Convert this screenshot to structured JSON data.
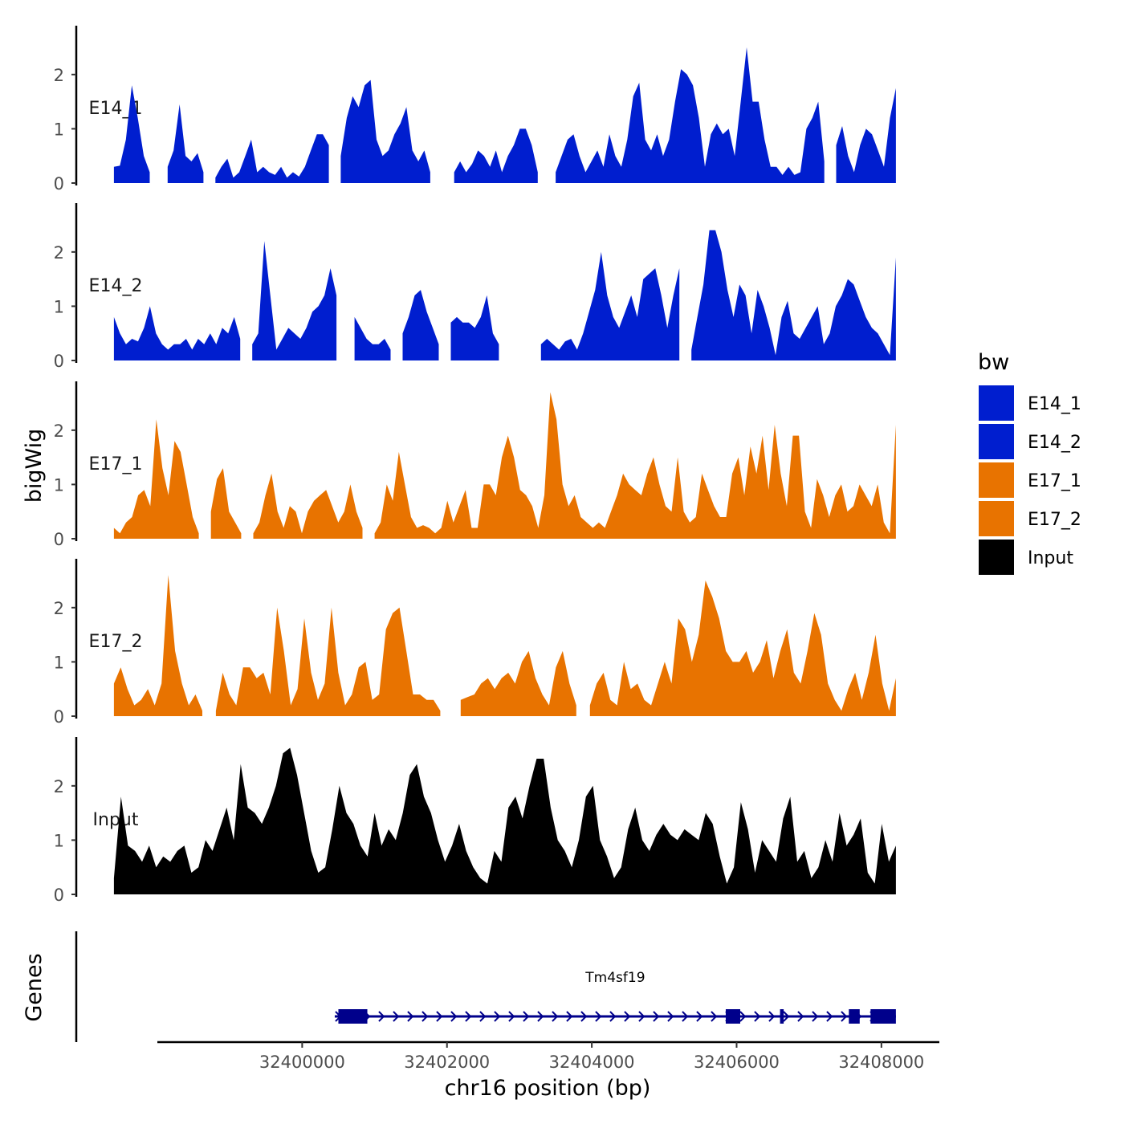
{
  "chart_data": {
    "type": "area",
    "x_min": 32398000,
    "x_max": 32408800,
    "x_start": 32397400,
    "x_end": 32408200,
    "y_axis_title": "bigWig",
    "x_axis_title": "chr16 position (bp)",
    "gene_axis_title": "Genes",
    "ylim": [
      0,
      2.9
    ],
    "yticks": [
      "0",
      "1",
      "2"
    ],
    "xticks": [
      {
        "value": 32400000,
        "label": "32400000"
      },
      {
        "value": 32402000,
        "label": "32402000"
      },
      {
        "value": 32404000,
        "label": "32404000"
      },
      {
        "value": 32406000,
        "label": "32406000"
      },
      {
        "value": 32408000,
        "label": "32408000"
      }
    ],
    "legend_title": "bw",
    "series": [
      {
        "name": "E14_1",
        "label": "E14_1",
        "color": "#001ECF",
        "values": [
          0.3,
          0.32,
          0.8,
          1.8,
          1.2,
          0.5,
          0.2,
          null,
          null,
          0.3,
          0.6,
          1.45,
          0.5,
          0.4,
          0.55,
          0.2,
          null,
          0.1,
          0.3,
          0.45,
          0.1,
          0.2,
          0.5,
          0.8,
          0.2,
          0.3,
          0.2,
          0.15,
          0.3,
          0.1,
          0.2,
          0.12,
          0.3,
          0.6,
          0.9,
          0.9,
          0.7,
          null,
          0.5,
          1.2,
          1.6,
          1.4,
          1.8,
          1.9,
          0.8,
          0.5,
          0.6,
          0.9,
          1.1,
          1.4,
          0.6,
          0.4,
          0.6,
          0.2,
          null,
          null,
          null,
          0.2,
          0.4,
          0.2,
          0.35,
          0.6,
          0.5,
          0.3,
          0.6,
          0.2,
          0.5,
          0.7,
          1.0,
          1.0,
          0.7,
          0.2,
          null,
          null,
          0.2,
          0.5,
          0.8,
          0.9,
          0.5,
          0.2,
          0.4,
          0.6,
          0.3,
          0.9,
          0.5,
          0.3,
          0.8,
          1.6,
          1.85,
          0.8,
          0.6,
          0.9,
          0.5,
          0.8,
          1.5,
          2.1,
          2.0,
          1.8,
          1.2,
          0.3,
          0.9,
          1.1,
          0.9,
          1.0,
          0.5,
          1.5,
          2.5,
          1.5,
          1.5,
          0.8,
          0.3,
          0.3,
          0.15,
          0.3,
          0.15,
          0.2,
          1.0,
          1.2,
          1.5,
          0.4,
          null,
          0.7,
          1.05,
          0.5,
          0.2,
          0.7,
          1.0,
          0.9,
          0.6,
          0.3,
          1.2,
          1.75
        ]
      },
      {
        "name": "E14_2",
        "label": "E14_2",
        "color": "#001ECF",
        "values": [
          0.8,
          0.5,
          0.3,
          0.4,
          0.35,
          0.6,
          1.0,
          0.5,
          0.3,
          0.2,
          0.3,
          0.3,
          0.4,
          0.2,
          0.4,
          0.3,
          0.5,
          0.3,
          0.6,
          0.5,
          0.8,
          0.4,
          null,
          0.3,
          0.5,
          2.2,
          1.2,
          0.2,
          0.4,
          0.6,
          0.5,
          0.4,
          0.6,
          0.9,
          1.0,
          1.2,
          1.7,
          1.2,
          null,
          null,
          0.8,
          0.6,
          0.4,
          0.3,
          0.3,
          0.4,
          0.2,
          null,
          0.5,
          0.8,
          1.2,
          1.3,
          0.9,
          0.6,
          0.3,
          null,
          0.7,
          0.8,
          0.7,
          0.7,
          0.6,
          0.8,
          1.2,
          0.5,
          0.3,
          null,
          null,
          null,
          null,
          null,
          null,
          0.3,
          0.4,
          0.3,
          0.2,
          0.35,
          0.4,
          0.2,
          0.5,
          0.9,
          1.3,
          2.0,
          1.2,
          0.8,
          0.6,
          0.9,
          1.2,
          0.8,
          1.5,
          1.6,
          1.7,
          1.2,
          0.6,
          1.2,
          1.7,
          null,
          0.2,
          0.8,
          1.4,
          2.4,
          2.4,
          2.0,
          1.3,
          0.8,
          1.4,
          1.2,
          0.5,
          1.3,
          1.0,
          0.6,
          0.1,
          0.8,
          1.1,
          0.5,
          0.4,
          0.6,
          0.8,
          1.0,
          0.3,
          0.5,
          1.0,
          1.2,
          1.5,
          1.4,
          1.1,
          0.8,
          0.6,
          0.5,
          0.3,
          0.1,
          1.9
        ]
      },
      {
        "name": "E17_1",
        "label": "E17_1",
        "color": "#E87300",
        "values": [
          0.2,
          0.1,
          0.3,
          0.4,
          0.8,
          0.9,
          0.6,
          2.2,
          1.3,
          0.8,
          1.8,
          1.6,
          1.0,
          0.4,
          0.1,
          null,
          0.5,
          1.1,
          1.3,
          0.5,
          0.3,
          0.1,
          null,
          0.1,
          0.3,
          0.8,
          1.2,
          0.5,
          0.2,
          0.6,
          0.5,
          0.1,
          0.5,
          0.7,
          0.8,
          0.9,
          0.6,
          0.3,
          0.5,
          1.0,
          0.5,
          0.2,
          null,
          0.1,
          0.3,
          1.0,
          0.7,
          1.6,
          1.0,
          0.4,
          0.2,
          0.25,
          0.2,
          0.1,
          0.2,
          0.7,
          0.3,
          0.6,
          0.9,
          0.2,
          0.2,
          1.0,
          1.0,
          0.8,
          1.5,
          1.9,
          1.5,
          0.9,
          0.8,
          0.6,
          0.2,
          0.8,
          2.7,
          2.2,
          1.0,
          0.6,
          0.8,
          0.4,
          0.3,
          0.2,
          0.3,
          0.2,
          0.5,
          0.8,
          1.2,
          1.0,
          0.9,
          0.8,
          1.2,
          1.5,
          1.0,
          0.6,
          0.5,
          1.5,
          0.5,
          0.3,
          0.4,
          1.2,
          0.9,
          0.6,
          0.4,
          0.4,
          1.2,
          1.5,
          0.8,
          1.7,
          1.2,
          1.9,
          0.9,
          2.1,
          1.2,
          0.6,
          1.9,
          1.9,
          0.5,
          0.2,
          1.1,
          0.8,
          0.4,
          0.8,
          1.0,
          0.5,
          0.6,
          1.0,
          0.8,
          0.6,
          1.0,
          0.3,
          0.1,
          2.1
        ]
      },
      {
        "name": "E17_2",
        "label": "E17_2",
        "color": "#E87300",
        "values": [
          0.6,
          0.9,
          0.5,
          0.2,
          0.3,
          0.5,
          0.2,
          0.6,
          2.6,
          1.2,
          0.6,
          0.2,
          0.4,
          0.1,
          null,
          0.1,
          0.8,
          0.4,
          0.2,
          0.9,
          0.9,
          0.7,
          0.8,
          0.4,
          2.0,
          1.2,
          0.2,
          0.5,
          1.8,
          0.8,
          0.3,
          0.6,
          2.0,
          0.8,
          0.2,
          0.4,
          0.9,
          1.0,
          0.3,
          0.4,
          1.6,
          1.9,
          2.0,
          1.2,
          0.4,
          0.4,
          0.3,
          0.3,
          0.1,
          null,
          null,
          0.3,
          0.35,
          0.4,
          0.6,
          0.7,
          0.5,
          0.7,
          0.8,
          0.6,
          1.0,
          1.2,
          0.7,
          0.4,
          0.2,
          0.9,
          1.2,
          0.6,
          0.2,
          null,
          0.2,
          0.6,
          0.8,
          0.3,
          0.2,
          1.0,
          0.5,
          0.6,
          0.3,
          0.2,
          0.6,
          1.0,
          0.6,
          1.8,
          1.6,
          1.0,
          1.5,
          2.5,
          2.2,
          1.8,
          1.2,
          1.0,
          1.0,
          1.2,
          0.8,
          1.0,
          1.4,
          0.7,
          1.2,
          1.6,
          0.8,
          0.6,
          1.2,
          1.9,
          1.5,
          0.6,
          0.3,
          0.1,
          0.5,
          0.8,
          0.3,
          0.8,
          1.5,
          0.6,
          0.1,
          0.7
        ]
      },
      {
        "name": "Input",
        "label": "Input",
        "color": "#000000",
        "values": [
          0.3,
          1.8,
          0.9,
          0.8,
          0.6,
          0.9,
          0.5,
          0.7,
          0.6,
          0.8,
          0.9,
          0.4,
          0.5,
          1.0,
          0.8,
          1.2,
          1.6,
          1.0,
          2.4,
          1.6,
          1.5,
          1.3,
          1.6,
          2.0,
          2.6,
          2.7,
          2.2,
          1.5,
          0.8,
          0.4,
          0.5,
          1.2,
          2.0,
          1.5,
          1.3,
          0.9,
          0.7,
          1.5,
          0.9,
          1.2,
          1.0,
          1.5,
          2.2,
          2.4,
          1.8,
          1.5,
          1.0,
          0.6,
          0.9,
          1.3,
          0.8,
          0.5,
          0.3,
          0.2,
          0.8,
          0.6,
          1.6,
          1.8,
          1.4,
          2.0,
          2.5,
          2.5,
          1.6,
          1.0,
          0.8,
          0.5,
          1.0,
          1.8,
          2.0,
          1.0,
          0.7,
          0.3,
          0.5,
          1.2,
          1.6,
          1.0,
          0.8,
          1.1,
          1.3,
          1.1,
          1.0,
          1.2,
          1.1,
          1.0,
          1.5,
          1.3,
          0.7,
          0.2,
          0.5,
          1.7,
          1.2,
          0.4,
          1.0,
          0.8,
          0.6,
          1.4,
          1.8,
          0.6,
          0.8,
          0.3,
          0.5,
          1.0,
          0.6,
          1.5,
          0.9,
          1.1,
          1.4,
          0.4,
          0.2,
          1.3,
          0.6,
          0.9
        ]
      }
    ],
    "gene": {
      "name": "Tm4sf19",
      "color": "#00008B",
      "start": 32400450,
      "end": 32408200,
      "strand": "+",
      "exons": [
        [
          32400500,
          32400900
        ],
        [
          32405850,
          32406050
        ],
        [
          32406600,
          32406650
        ],
        [
          32407550,
          32407700
        ],
        [
          32407850,
          32408200
        ]
      ]
    }
  }
}
